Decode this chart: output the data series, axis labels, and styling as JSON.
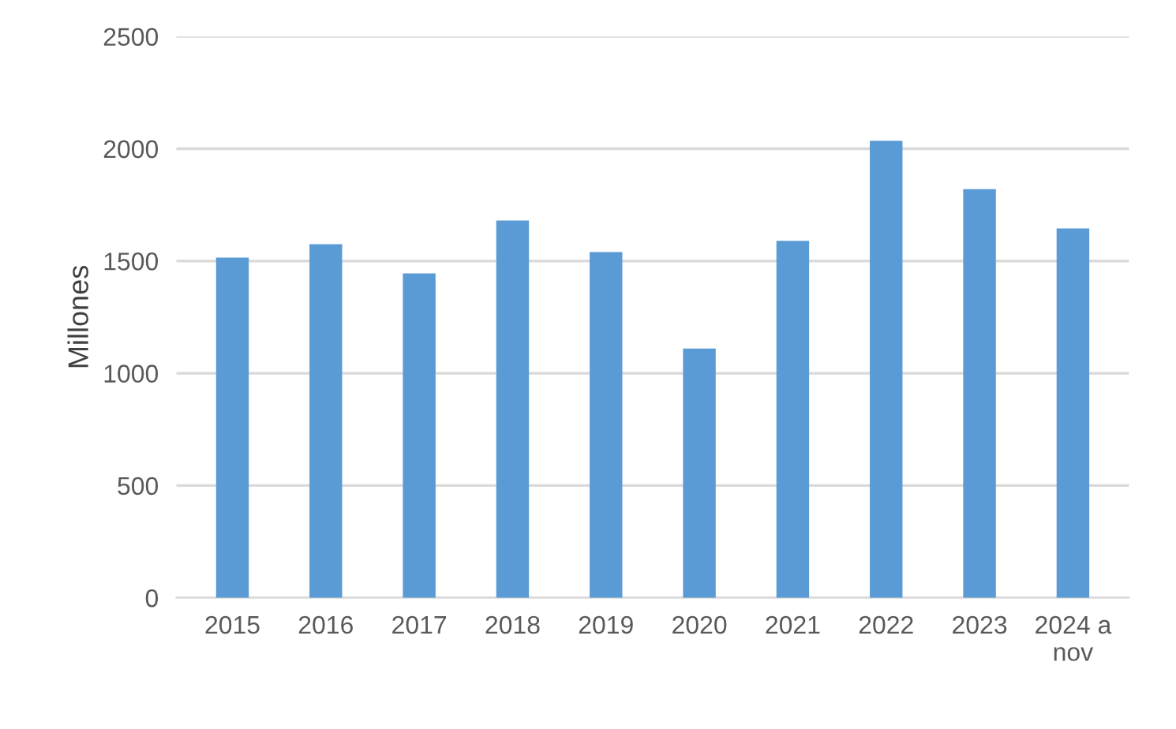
{
  "chart_data": {
    "type": "bar",
    "ylabel": "Millones",
    "categories": [
      "2015",
      "2016",
      "2017",
      "2018",
      "2019",
      "2020",
      "2021",
      "2022",
      "2023",
      "2024 a\nnov"
    ],
    "values": [
      1515,
      1575,
      1445,
      1680,
      1540,
      1110,
      1590,
      2035,
      1820,
      1645
    ],
    "color": "#5b9bd5",
    "ylim": [
      0,
      2500
    ],
    "yticks": [
      0,
      500,
      1000,
      1500,
      2000,
      2500
    ],
    "grid": "y",
    "legend": false
  }
}
